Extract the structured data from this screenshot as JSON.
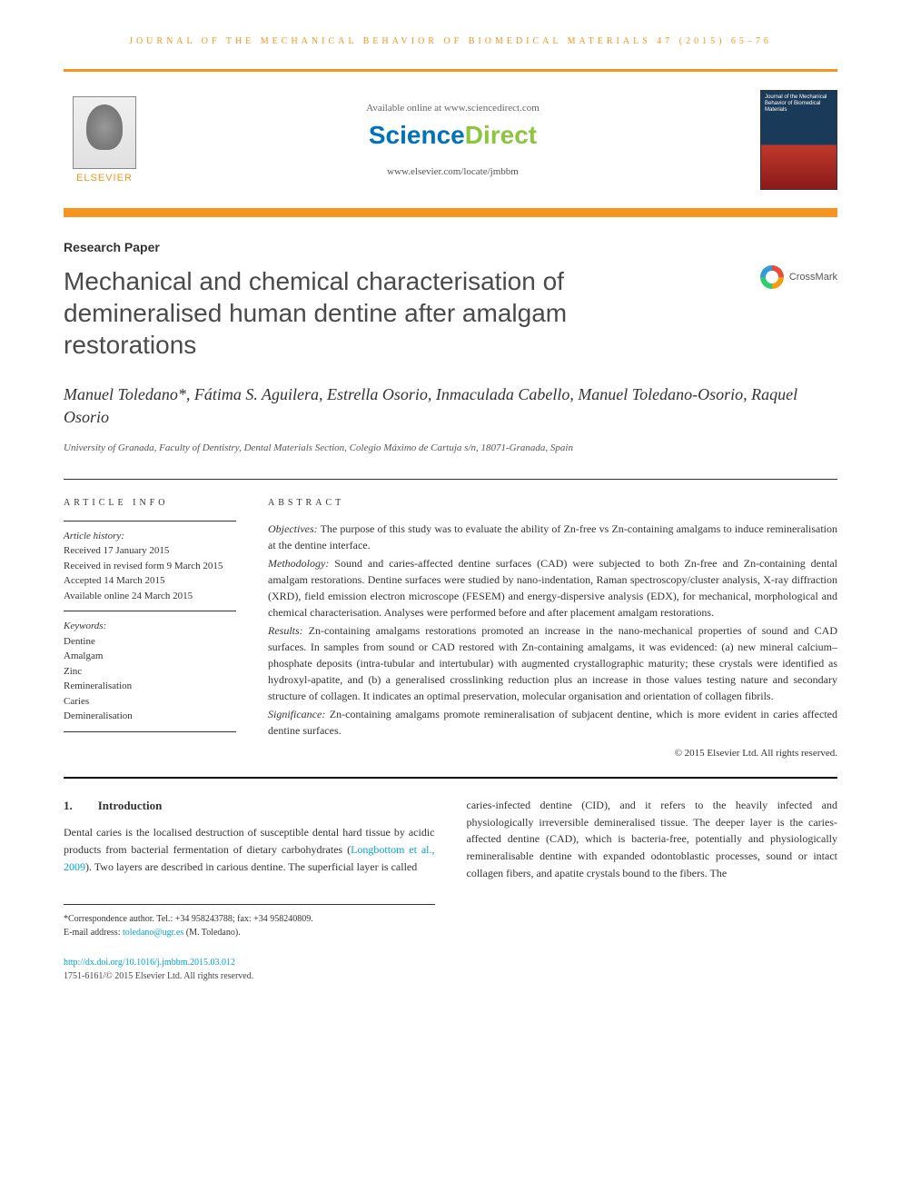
{
  "running_head": "JOURNAL OF THE MECHANICAL BEHAVIOR OF BIOMEDICAL MATERIALS 47 (2015) 65–76",
  "header": {
    "elsevier_label": "ELSEVIER",
    "available_text": "Available online at www.sciencedirect.com",
    "scidirect_1": "Science",
    "scidirect_2": "Direct",
    "journal_url": "www.elsevier.com/locate/jmbbm",
    "cover_text": "Journal of the Mechanical Behavior of Biomedical Materials"
  },
  "colors": {
    "accent": "#f7941d",
    "link": "#00a2d3",
    "sd_blue": "#0071bc",
    "sd_green": "#8cc63f"
  },
  "article_type": "Research Paper",
  "title": "Mechanical and chemical characterisation of demineralised human dentine after amalgam restorations",
  "crossmark_label": "CrossMark",
  "authors": "Manuel Toledano*, Fátima S. Aguilera, Estrella Osorio, Inmaculada Cabello, Manuel Toledano-Osorio, Raquel Osorio",
  "affiliation": "University of Granada, Faculty of Dentistry, Dental Materials Section, Colegio Máximo de Cartuja s/n, 18071-Granada, Spain",
  "info": {
    "heading": "ARTICLE INFO",
    "history_label": "Article history:",
    "received": "Received 17 January 2015",
    "revised": "Received in revised form 9 March 2015",
    "accepted": "Accepted 14 March 2015",
    "online": "Available online 24 March 2015",
    "keywords_label": "Keywords:",
    "kw1": "Dentine",
    "kw2": "Amalgam",
    "kw3": "Zinc",
    "kw4": "Remineralisation",
    "kw5": "Caries",
    "kw6": "Demineralisation"
  },
  "abstract": {
    "heading": "ABSTRACT",
    "objectives_label": "Objectives:",
    "objectives": " The purpose of this study was to evaluate the ability of Zn-free vs Zn-containing amalgams to induce remineralisation at the dentine interface.",
    "methodology_label": "Methodology:",
    "methodology": " Sound and caries-affected dentine surfaces (CAD) were subjected to both Zn-free and Zn-containing dental amalgam restorations. Dentine surfaces were studied by nano-indentation, Raman spectroscopy/cluster analysis, X-ray diffraction (XRD), field emission electron microscope (FESEM) and energy-dispersive analysis (EDX), for mechanical, morphological and chemical characterisation. Analyses were performed before and after placement amalgam restorations.",
    "results_label": "Results:",
    "results": " Zn-containing amalgams restorations promoted an increase in the nano-mechanical properties of sound and CAD surfaces. In samples from sound or CAD restored with Zn-containing amalgams, it was evidenced: (a) new mineral calcium–phosphate deposits (intra-tubular and intertubular) with augmented crystallographic maturity; these crystals were identified as hydroxyl-apatite, and (b) a generalised crosslinking reduction plus an increase in those values testing nature and secondary structure of collagen. It indicates an optimal preservation, molecular organisation and orientation of collagen fibrils.",
    "significance_label": "Significance:",
    "significance": " Zn-containing amalgams promote remineralisation of subjacent dentine, which is more evident in caries affected dentine surfaces.",
    "copyright": "© 2015 Elsevier Ltd. All rights reserved."
  },
  "section1": {
    "num": "1.",
    "title": "Introduction",
    "col1_a": "Dental caries is the localised destruction of susceptible dental hard tissue by acidic products from bacterial fermentation of dietary carbohydrates (",
    "col1_cite": "Longbottom et al., 2009",
    "col1_b": "). Two layers are described in carious dentine. The superficial layer is called",
    "col2": "caries-infected dentine (CID), and it refers to the heavily infected and physiologically irreversible demineralised tissue. The deeper layer is the caries-affected dentine (CAD), which is bacteria-free, potentially and physiologically remineralisable dentine with expanded odontoblastic processes, sound or intact collagen fibers, and apatite crystals bound to the fibers. The"
  },
  "footnotes": {
    "corr": "*Correspondence author. Tel.: +34 958243788; fax: +34 958240809.",
    "email_label": "E-mail address: ",
    "email": "toledano@ugr.es",
    "email_suffix": " (M. Toledano)."
  },
  "footer": {
    "doi": "http://dx.doi.org/10.1016/j.jmbbm.2015.03.012",
    "issn": "1751-6161/© 2015 Elsevier Ltd. All rights reserved."
  }
}
